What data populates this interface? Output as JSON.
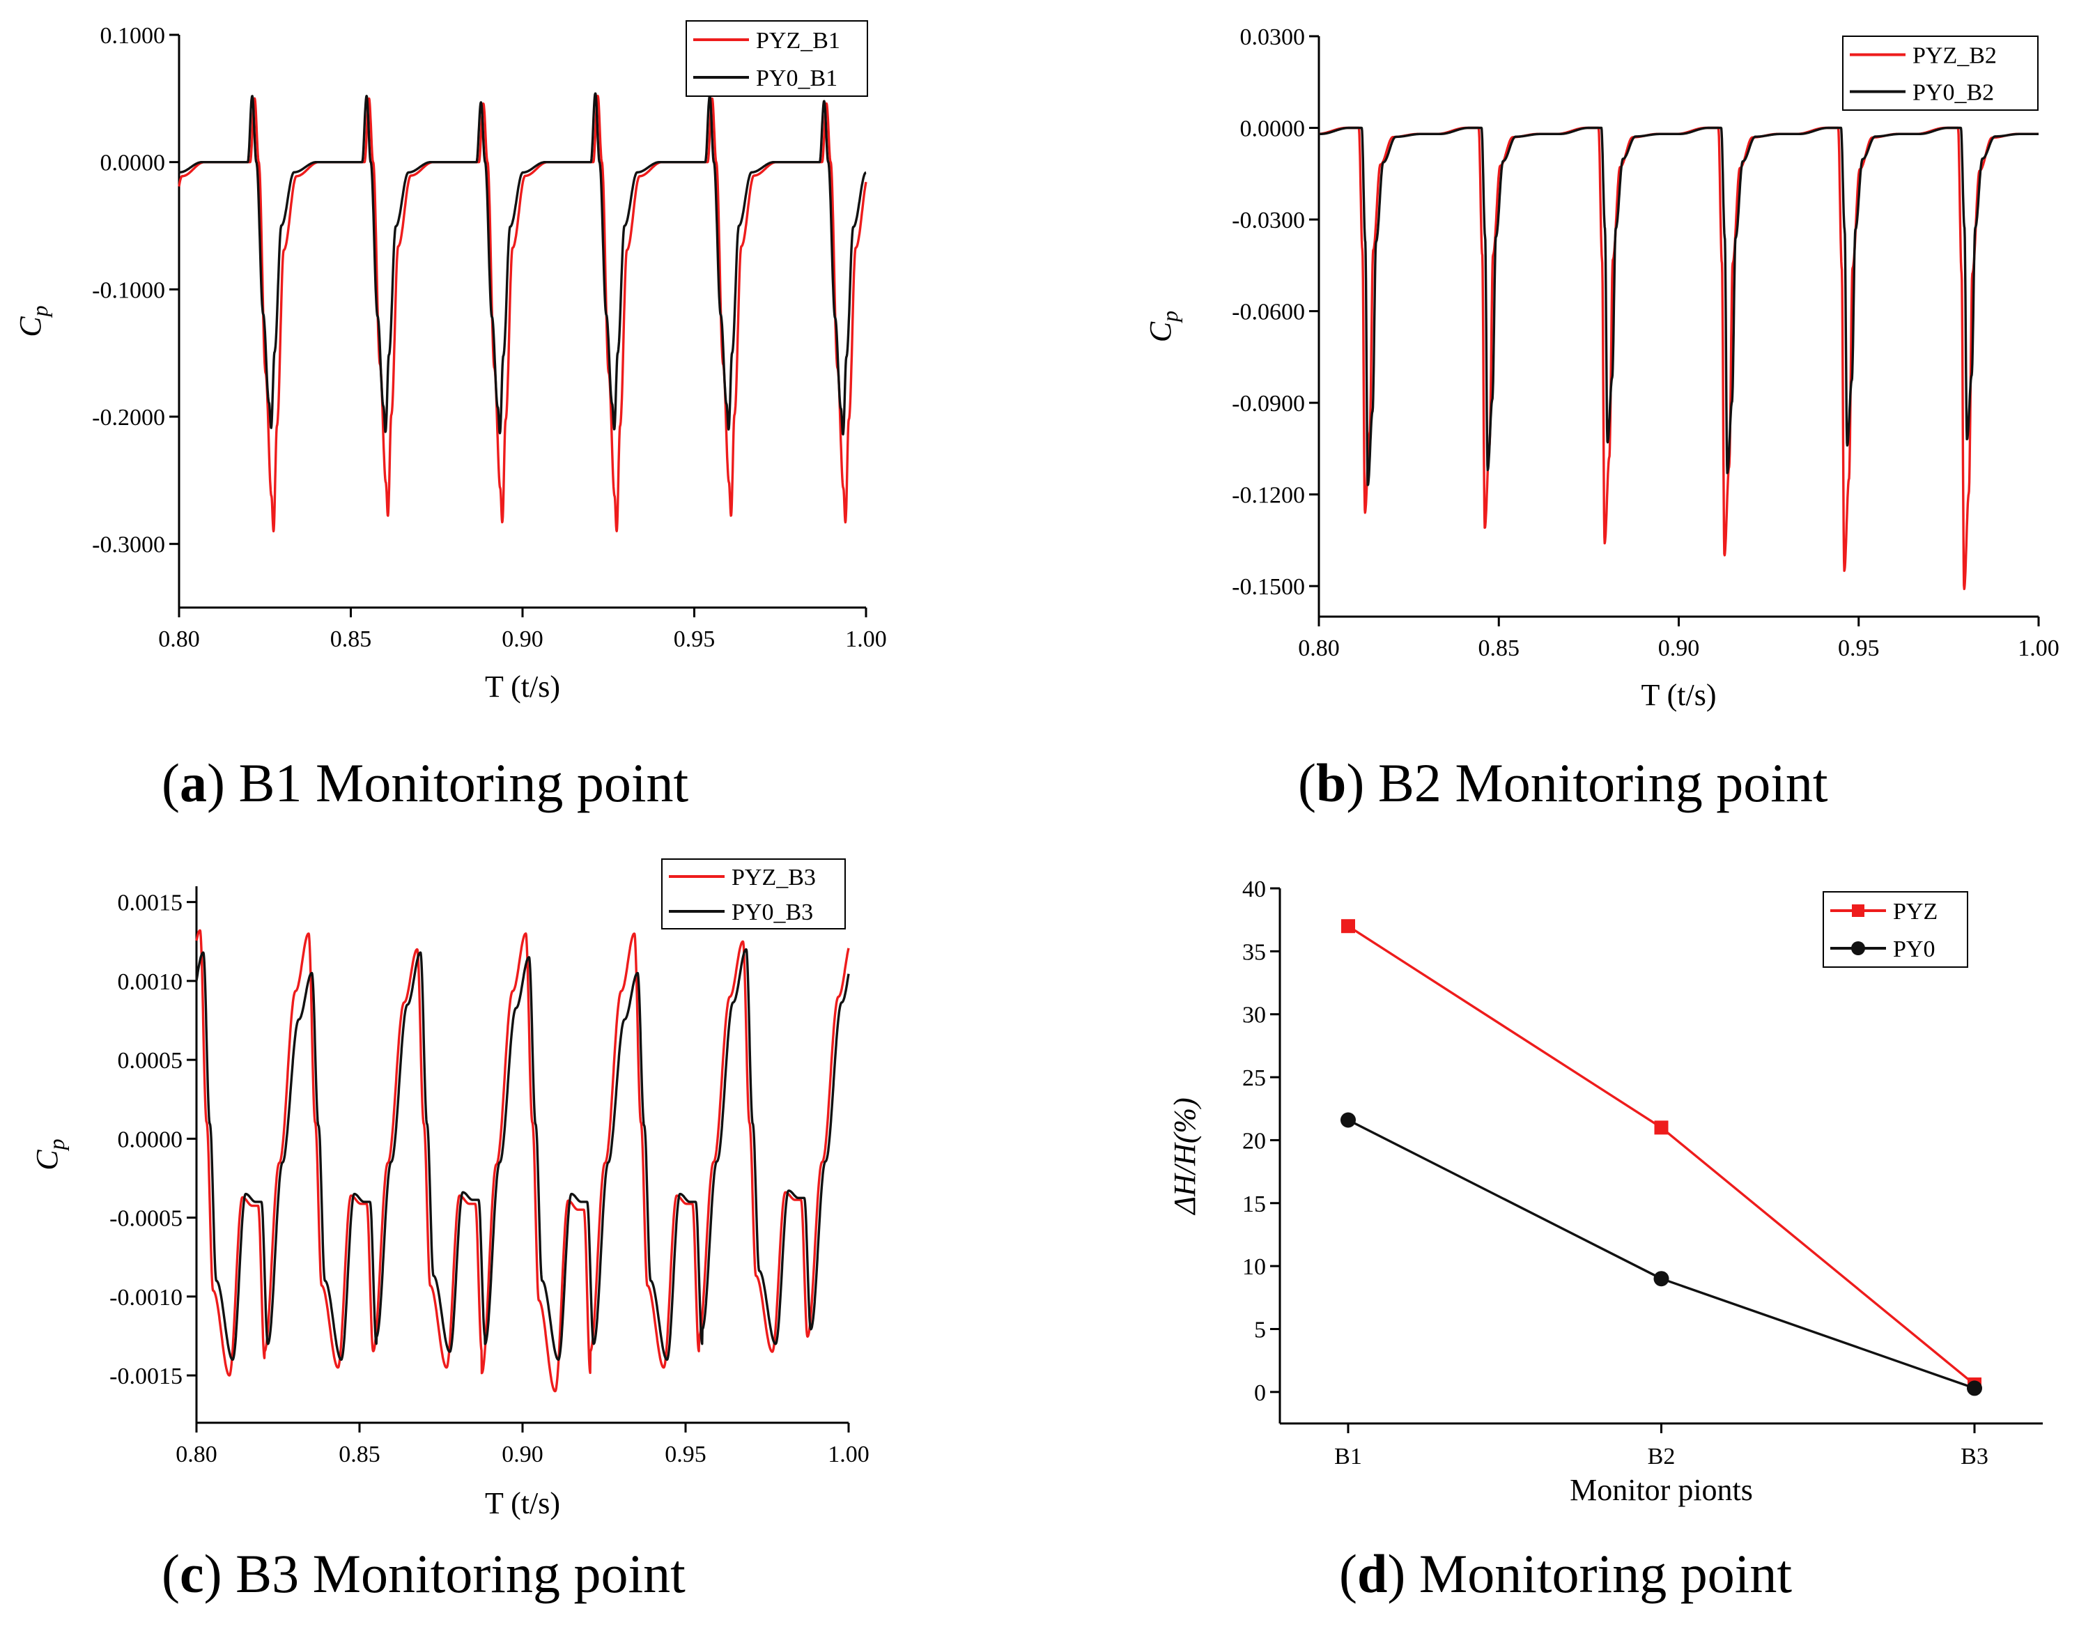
{
  "colors": {
    "pyz": "#ee1c1c",
    "py0": "#111111"
  },
  "chart_data": [
    {
      "id": "a",
      "type": "line",
      "caption_letter": "a",
      "caption_text": " B1 Monitoring point",
      "xlabel": "T (t/s)",
      "ylabel": "C",
      "ylabel_sub": "p",
      "xlim": [
        0.8,
        1.0
      ],
      "ylim": [
        -0.35,
        0.1
      ],
      "xticks": [
        0.8,
        0.85,
        0.9,
        0.95,
        1.0
      ],
      "xtick_labels": [
        "0.80",
        "0.85",
        "0.90",
        "0.95",
        "1.00"
      ],
      "yticks": [
        0.1,
        0.0,
        -0.1,
        -0.2,
        -0.3
      ],
      "ytick_labels": [
        "0.1000",
        "0.0000",
        "-0.1000",
        "-0.2000",
        "-0.3000"
      ],
      "legend_position": "top-right",
      "period": 0.0333,
      "cycle_start": 0.82,
      "cycle_shape": [
        [
          0.0,
          0.0
        ],
        [
          0.0013,
          0.048
        ],
        [
          0.0025,
          0.0
        ],
        [
          0.0045,
          -0.12
        ],
        [
          0.0062,
          -0.19
        ],
        [
          0.0068,
          -0.21
        ],
        [
          0.0078,
          -0.15
        ],
        [
          0.0098,
          -0.05
        ],
        [
          0.0135,
          -0.008
        ],
        [
          0.02,
          0.0
        ],
        [
          0.0333,
          0.0
        ]
      ],
      "series": [
        {
          "name": "PYZ_B1",
          "color_key": "pyz",
          "x_shift": 0.0007,
          "peaks": [
            0.05,
            0.05,
            0.046,
            0.052,
            0.05,
            0.046
          ],
          "minima": [
            -0.29,
            -0.278,
            -0.283,
            -0.29,
            -0.278,
            -0.283
          ]
        },
        {
          "name": "PY0_B1",
          "color_key": "py0",
          "x_shift": 0.0,
          "peaks": [
            0.052,
            0.052,
            0.047,
            0.054,
            0.052,
            0.048
          ],
          "minima": [
            -0.209,
            -0.212,
            -0.213,
            -0.21,
            -0.21,
            -0.214
          ]
        }
      ]
    },
    {
      "id": "b",
      "type": "line",
      "caption_letter": "b",
      "caption_text": " B2 Monitoring point",
      "xlabel": "T (t/s)",
      "ylabel": "C",
      "ylabel_sub": "p",
      "xlim": [
        0.8,
        1.0
      ],
      "ylim": [
        -0.16,
        0.03
      ],
      "xticks": [
        0.8,
        0.85,
        0.9,
        0.95,
        1.0
      ],
      "xtick_labels": [
        "0.80",
        "0.85",
        "0.90",
        "0.95",
        "1.00"
      ],
      "yticks": [
        0.03,
        0.0,
        -0.03,
        -0.06,
        -0.09,
        -0.12,
        -0.15
      ],
      "ytick_labels": [
        "0.0300",
        "0.0000",
        "-0.0300",
        "-0.0600",
        "-0.0900",
        "-0.1200",
        "-0.1500"
      ],
      "legend_position": "top-right",
      "period": 0.0333,
      "cycle_start": 0.8,
      "cycle_shape": [
        [
          0.0,
          -0.002
        ],
        [
          0.008,
          0.0
        ],
        [
          0.0115,
          0.0
        ],
        [
          0.0125,
          -0.04
        ],
        [
          0.0132,
          -0.126
        ],
        [
          0.0145,
          -0.1
        ],
        [
          0.0155,
          -0.04
        ],
        [
          0.0175,
          -0.012
        ],
        [
          0.021,
          -0.003
        ],
        [
          0.028,
          -0.002
        ],
        [
          0.0333,
          -0.002
        ]
      ],
      "series": [
        {
          "name": "PYZ_B2",
          "color_key": "pyz",
          "x_shift": -0.0004,
          "peaks": [
            0.0,
            0.0,
            0.0,
            0.0,
            0.0,
            0.0
          ],
          "minima": [
            -0.126,
            -0.131,
            -0.136,
            -0.14,
            -0.145,
            -0.151
          ]
        },
        {
          "name": "PY0_B2",
          "color_key": "py0",
          "x_shift": 0.0004,
          "peaks": [
            0.0,
            0.0,
            0.0,
            0.0,
            0.0,
            0.0
          ],
          "minima": [
            -0.117,
            -0.112,
            -0.103,
            -0.113,
            -0.104,
            -0.102
          ]
        }
      ]
    },
    {
      "id": "c",
      "type": "line",
      "caption_letter": "c",
      "caption_text": " B3 Monitoring point",
      "xlabel": "T (t/s)",
      "ylabel": "C",
      "ylabel_sub": "p",
      "xlim": [
        0.8,
        1.0
      ],
      "ylim": [
        -0.0018,
        0.0016
      ],
      "xticks": [
        0.8,
        0.85,
        0.9,
        0.95,
        1.0
      ],
      "xtick_labels": [
        "0.80",
        "0.85",
        "0.90",
        "0.95",
        "1.00"
      ],
      "yticks": [
        0.0015,
        0.001,
        0.0005,
        0.0,
        -0.0005,
        -0.001,
        -0.0015
      ],
      "ytick_labels": [
        "0.0015",
        "0.0010",
        "0.0005",
        "0.0000",
        "-0.0005",
        "-0.0010",
        "-0.0015"
      ],
      "legend_position": "top-right",
      "period": 0.0333,
      "cycle_start": 0.788,
      "cycle_shape": [
        [
          0.0,
          -0.0013
        ],
        [
          0.0045,
          -0.00015
        ],
        [
          0.0095,
          0.0009
        ],
        [
          0.0135,
          0.00125
        ],
        [
          0.0155,
          0.0001
        ],
        [
          0.0175,
          -0.0009
        ],
        [
          0.0225,
          -0.0014
        ],
        [
          0.0265,
          -0.00035
        ],
        [
          0.0295,
          -0.0004
        ],
        [
          0.0313,
          -0.0004
        ],
        [
          0.0333,
          -0.0013
        ]
      ],
      "series": [
        {
          "name": "PYZ_B3",
          "color_key": "pyz",
          "x_shift": -0.0004,
          "peaks": [
            0.00132,
            0.0013,
            0.0012,
            0.0013,
            0.0013,
            0.00125
          ],
          "minima": [
            -0.0015,
            -0.00145,
            -0.00145,
            -0.0016,
            -0.00145,
            -0.00135
          ]
        },
        {
          "name": "PY0_B3",
          "color_key": "py0",
          "x_shift": 0.0006,
          "peaks": [
            0.00118,
            0.00105,
            0.00118,
            0.00115,
            0.00105,
            0.0012
          ],
          "minima": [
            -0.0014,
            -0.0014,
            -0.00135,
            -0.0014,
            -0.0014,
            -0.0013
          ]
        }
      ]
    },
    {
      "id": "d",
      "type": "line",
      "caption_letter": "d",
      "caption_text": " Monitoring point",
      "xlabel": "Monitor pionts",
      "ylabel": "ΔH/H(%)",
      "categories": [
        "B1",
        "B2",
        "B3"
      ],
      "ylim": [
        -2.5,
        40
      ],
      "yticks": [
        0,
        5,
        10,
        15,
        20,
        25,
        30,
        35,
        40
      ],
      "ytick_labels": [
        "0",
        "5",
        "10",
        "15",
        "20",
        "25",
        "30",
        "35",
        "40"
      ],
      "legend_position": "top-right",
      "series": [
        {
          "name": "PYZ",
          "color_key": "pyz",
          "marker": "square",
          "values": [
            37.0,
            21.0,
            0.6
          ]
        },
        {
          "name": "PY0",
          "color_key": "py0",
          "marker": "circle",
          "values": [
            21.6,
            9.0,
            0.3
          ]
        }
      ]
    }
  ]
}
